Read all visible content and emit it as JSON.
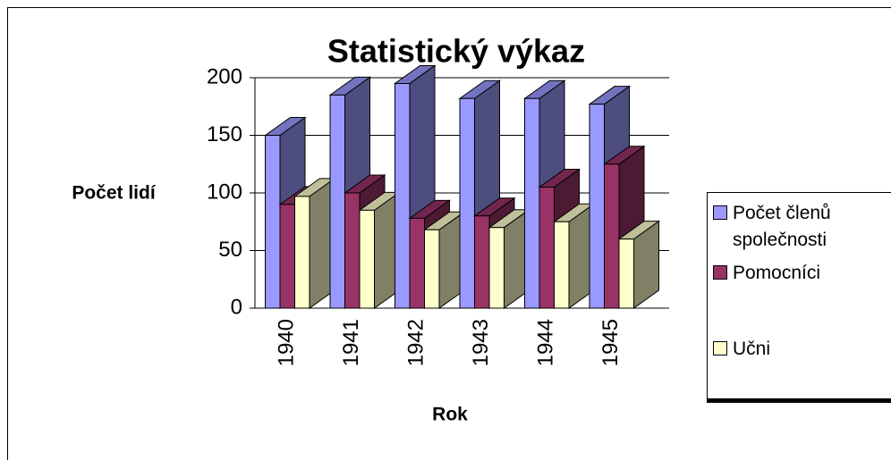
{
  "chart_data": {
    "type": "bar3d",
    "title": "Statistický výkaz",
    "x_label": "Rok",
    "y_label": "Počet lidí",
    "categories": [
      "1940",
      "1941",
      "1942",
      "1943",
      "1944",
      "1945"
    ],
    "series": [
      {
        "name": "Počet členů společnosti",
        "color": "#9999ff",
        "values": [
          150,
          185,
          195,
          182,
          182,
          177
        ]
      },
      {
        "name": "Pomocníci",
        "color": "#993366",
        "values": [
          90,
          100,
          78,
          80,
          105,
          125
        ]
      },
      {
        "name": "Učni",
        "color": "#ffffcc",
        "values": [
          97,
          85,
          68,
          70,
          75,
          60
        ]
      }
    ],
    "ylim": [
      0,
      200
    ],
    "yticks": [
      0,
      50,
      100,
      150,
      200
    ],
    "grid": true,
    "legend": "right"
  }
}
